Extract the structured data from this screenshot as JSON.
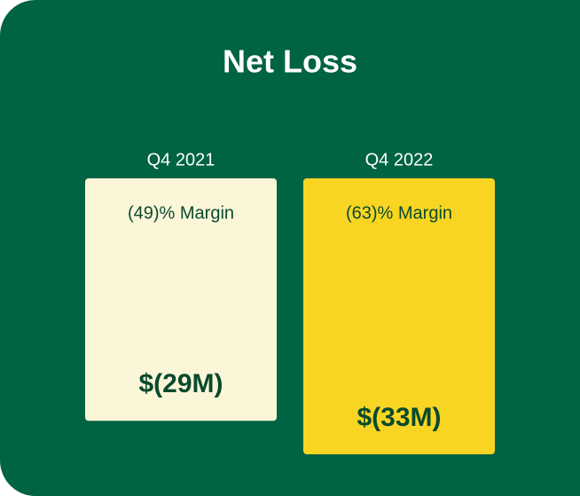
{
  "chart_data": {
    "type": "bar",
    "title": "Net Loss",
    "categories": [
      "Q4 2021",
      "Q4 2022"
    ],
    "series": [
      {
        "colors": [
          "#fcf6d9",
          "#f8d523"
        ],
        "values": [
          -29,
          -33
        ],
        "value_labels": [
          "$(29M)",
          "$(33M)"
        ]
      }
    ],
    "annotations": [
      "(49)% Margin",
      "(63)% Margin"
    ]
  }
}
